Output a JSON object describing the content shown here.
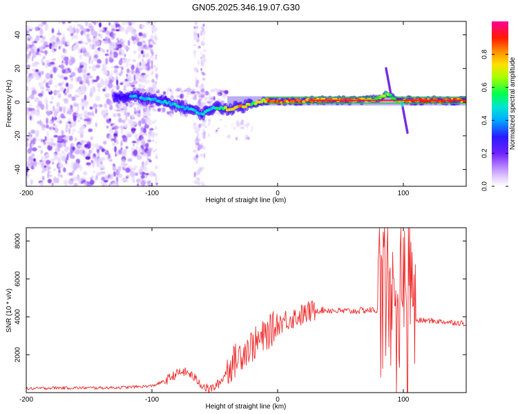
{
  "title": "GN05.2025.346.19.07.G30",
  "colors": {
    "snr_line": "#ee2b2b",
    "ridge_green": "#22cc22",
    "colormap": [
      "#ffffff",
      "#d9b8ff",
      "#8a2be2",
      "#3a00ff",
      "#00d5ff",
      "#00ff60",
      "#c8ff00",
      "#ff8c00",
      "#ff0000",
      "#ff00a0"
    ]
  },
  "chart_data": [
    {
      "type": "heatmap",
      "title": "GN05.2025.346.19.07.G30",
      "xlabel": "Height of straight line (km)",
      "ylabel": "Frequency (Hz)",
      "xlim": [
        -200,
        150
      ],
      "ylim": [
        -50,
        48
      ],
      "xticks": [
        -200,
        -100,
        0,
        100
      ],
      "yticks": [
        -40,
        -20,
        0,
        20,
        40
      ],
      "colorbar": {
        "label": "Normalized spectral amplitude",
        "range": [
          0.0,
          1.0
        ],
        "ticks": [
          "0.0",
          "0.2",
          "0.4",
          "0.6",
          "0.8"
        ],
        "tick_values": [
          0.0,
          0.2,
          0.4,
          0.6,
          0.8
        ]
      },
      "ridge": {
        "x": [
          -130,
          -110,
          -90,
          -75,
          -60,
          -50,
          -40,
          -30,
          -20,
          -10,
          0,
          20,
          40,
          60,
          80,
          88,
          95,
          102,
          120,
          150
        ],
        "freq": [
          3,
          3,
          0,
          -3,
          -7,
          -3,
          -4,
          -3,
          -1,
          1,
          0,
          1,
          1,
          1,
          2,
          5,
          1,
          1,
          1,
          1
        ],
        "amplitude": [
          0.3,
          0.4,
          0.45,
          0.5,
          0.45,
          0.45,
          0.7,
          0.75,
          0.7,
          0.75,
          0.85,
          0.8,
          0.8,
          0.8,
          0.65,
          0.7,
          0.6,
          0.8,
          0.8,
          0.8
        ]
      }
    },
    {
      "type": "line",
      "xlabel": "Height of straight line (km)",
      "ylabel": "SNR (10 * v/v)",
      "xlim": [
        -200,
        150
      ],
      "ylim": [
        0,
        8700
      ],
      "xticks": [
        -200,
        -100,
        0,
        100
      ],
      "yticks": [
        2000,
        4000,
        6000,
        8000
      ],
      "series": [
        {
          "name": "SNR",
          "x": [
            -200,
            -180,
            -160,
            -140,
            -120,
            -100,
            -90,
            -80,
            -75,
            -70,
            -65,
            -60,
            -55,
            -50,
            -45,
            -40,
            -35,
            -30,
            -25,
            -20,
            -15,
            -10,
            -5,
            0,
            5,
            10,
            15,
            20,
            25,
            30,
            40,
            50,
            60,
            70,
            80,
            85,
            88,
            90,
            93,
            95,
            98,
            100,
            103,
            105,
            108,
            110,
            120,
            130,
            140,
            150
          ],
          "y": [
            200,
            250,
            250,
            250,
            280,
            350,
            600,
            1000,
            1100,
            1000,
            700,
            400,
            150,
            300,
            600,
            1200,
            1600,
            2000,
            2300,
            2500,
            2700,
            3000,
            3300,
            3600,
            3800,
            3900,
            4000,
            4100,
            4250,
            4350,
            4350,
            4300,
            4300,
            4350,
            4350,
            5000,
            6500,
            3000,
            8000,
            500,
            6000,
            8600,
            300,
            7000,
            4000,
            3800,
            3800,
            3750,
            3700,
            3650
          ]
        }
      ]
    }
  ]
}
